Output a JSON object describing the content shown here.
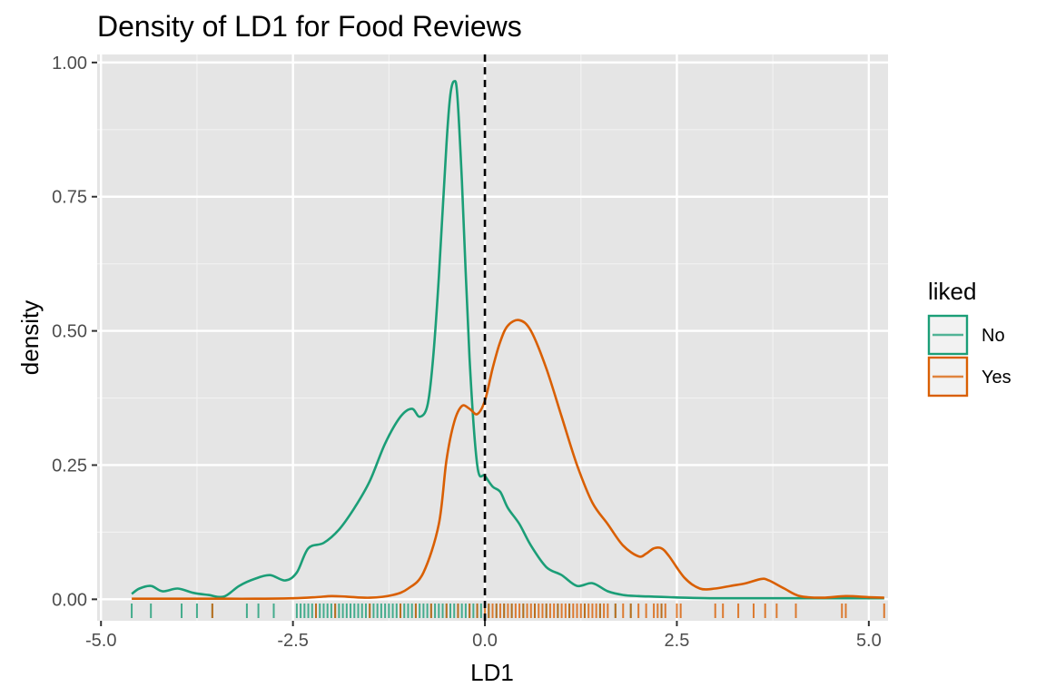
{
  "chart_data": {
    "type": "area",
    "title": "Density of LD1 for Food Reviews",
    "xlabel": "LD1",
    "ylabel": "density",
    "xlim": [
      -5.05,
      5.25
    ],
    "ylim": [
      -0.04,
      1.015
    ],
    "x_ticks": [
      -5.0,
      -2.5,
      0.0,
      2.5,
      5.0
    ],
    "x_tick_labels": [
      "-5.0",
      "-2.5",
      "0.0",
      "2.5",
      "5.0"
    ],
    "y_ticks": [
      0.0,
      0.25,
      0.5,
      0.75,
      1.0
    ],
    "y_tick_labels": [
      "0.00",
      "0.25",
      "0.50",
      "0.75",
      "1.00"
    ],
    "grid": true,
    "background": "#e5e5e5",
    "reference_line": {
      "x": 0.0,
      "style": "dashed",
      "color": "#000000"
    },
    "legend": {
      "title": "liked",
      "placement": "right"
    },
    "series": [
      {
        "name": "No",
        "color": "#1b9e77",
        "x": [
          -4.6,
          -4.5,
          -4.35,
          -4.2,
          -4.0,
          -3.8,
          -3.6,
          -3.4,
          -3.2,
          -3.0,
          -2.8,
          -2.6,
          -2.45,
          -2.3,
          -2.1,
          -1.9,
          -1.7,
          -1.5,
          -1.3,
          -1.1,
          -0.95,
          -0.85,
          -0.75,
          -0.68,
          -0.6,
          -0.5,
          -0.45,
          -0.4,
          -0.36,
          -0.3,
          -0.2,
          -0.1,
          0.0,
          0.1,
          0.2,
          0.3,
          0.45,
          0.6,
          0.8,
          1.0,
          1.2,
          1.4,
          1.6,
          1.8,
          2.0,
          2.2,
          2.4,
          2.6,
          3.0,
          3.5,
          4.0,
          4.5,
          5.2
        ],
        "y": [
          0.01,
          0.02,
          0.025,
          0.015,
          0.02,
          0.012,
          0.008,
          0.005,
          0.025,
          0.038,
          0.045,
          0.035,
          0.05,
          0.095,
          0.105,
          0.13,
          0.17,
          0.22,
          0.29,
          0.34,
          0.355,
          0.34,
          0.36,
          0.44,
          0.6,
          0.85,
          0.94,
          0.965,
          0.94,
          0.78,
          0.45,
          0.25,
          0.23,
          0.21,
          0.2,
          0.17,
          0.14,
          0.1,
          0.06,
          0.045,
          0.025,
          0.03,
          0.015,
          0.008,
          0.006,
          0.005,
          0.004,
          0.003,
          0.002,
          0.002,
          0.002,
          0.002,
          0.002
        ]
      },
      {
        "name": "Yes",
        "color": "#d95f02",
        "x": [
          -4.6,
          -4.0,
          -3.5,
          -3.0,
          -2.5,
          -2.2,
          -2.0,
          -1.8,
          -1.5,
          -1.2,
          -1.0,
          -0.8,
          -0.6,
          -0.5,
          -0.4,
          -0.3,
          -0.2,
          -0.1,
          0.0,
          0.1,
          0.2,
          0.3,
          0.45,
          0.6,
          0.8,
          1.0,
          1.2,
          1.4,
          1.6,
          1.8,
          2.0,
          2.1,
          2.2,
          2.3,
          2.4,
          2.6,
          2.8,
          3.0,
          3.2,
          3.4,
          3.6,
          3.7,
          3.9,
          4.1,
          4.4,
          4.7,
          5.0,
          5.2
        ],
        "y": [
          0.001,
          0.001,
          0.001,
          0.001,
          0.002,
          0.004,
          0.006,
          0.005,
          0.003,
          0.008,
          0.02,
          0.05,
          0.14,
          0.26,
          0.33,
          0.36,
          0.355,
          0.345,
          0.37,
          0.43,
          0.48,
          0.51,
          0.52,
          0.5,
          0.43,
          0.34,
          0.25,
          0.18,
          0.14,
          0.1,
          0.08,
          0.085,
          0.095,
          0.095,
          0.08,
          0.04,
          0.02,
          0.02,
          0.025,
          0.03,
          0.038,
          0.035,
          0.02,
          0.006,
          0.003,
          0.006,
          0.004,
          0.003
        ]
      }
    ],
    "rugs": [
      {
        "name": "No",
        "color": "#1b9e77",
        "x": [
          -4.6,
          -4.35,
          -3.95,
          -3.75,
          -3.55,
          -3.1,
          -2.95,
          -2.75,
          -2.45,
          -2.4,
          -2.35,
          -2.3,
          -2.25,
          -2.2,
          -2.15,
          -2.1,
          -2.05,
          -2.0,
          -1.95,
          -1.9,
          -1.85,
          -1.8,
          -1.75,
          -1.7,
          -1.65,
          -1.6,
          -1.55,
          -1.5,
          -1.45,
          -1.4,
          -1.35,
          -1.3,
          -1.25,
          -1.2,
          -1.15,
          -1.1,
          -1.05,
          -1.0,
          -0.95,
          -0.9,
          -0.85,
          -0.8,
          -0.75,
          -0.7,
          -0.65,
          -0.6,
          -0.55,
          -0.5,
          -0.45,
          -0.4,
          -0.35,
          -0.3,
          -0.25,
          -0.2,
          -0.15,
          -0.1,
          -0.05,
          0.05,
          0.15,
          0.25,
          0.35,
          0.5,
          0.65,
          0.8,
          0.95,
          1.1,
          1.3,
          1.5,
          1.7,
          1.9,
          2.3
        ]
      },
      {
        "name": "Yes",
        "color": "#d95f02",
        "x": [
          -3.55,
          -2.2,
          -1.95,
          -1.5,
          -1.1,
          -0.9,
          -0.7,
          -0.5,
          -0.35,
          -0.2,
          -0.1,
          0.0,
          0.05,
          0.1,
          0.15,
          0.2,
          0.25,
          0.3,
          0.35,
          0.4,
          0.45,
          0.5,
          0.55,
          0.6,
          0.65,
          0.7,
          0.75,
          0.8,
          0.85,
          0.9,
          0.95,
          1.0,
          1.05,
          1.1,
          1.15,
          1.2,
          1.25,
          1.3,
          1.35,
          1.4,
          1.45,
          1.5,
          1.55,
          1.6,
          1.7,
          1.8,
          1.9,
          2.0,
          2.1,
          2.2,
          2.25,
          2.3,
          2.35,
          2.5,
          2.55,
          3.0,
          3.1,
          3.3,
          3.5,
          3.65,
          3.8,
          4.05,
          4.65,
          4.7,
          5.2
        ]
      }
    ]
  }
}
